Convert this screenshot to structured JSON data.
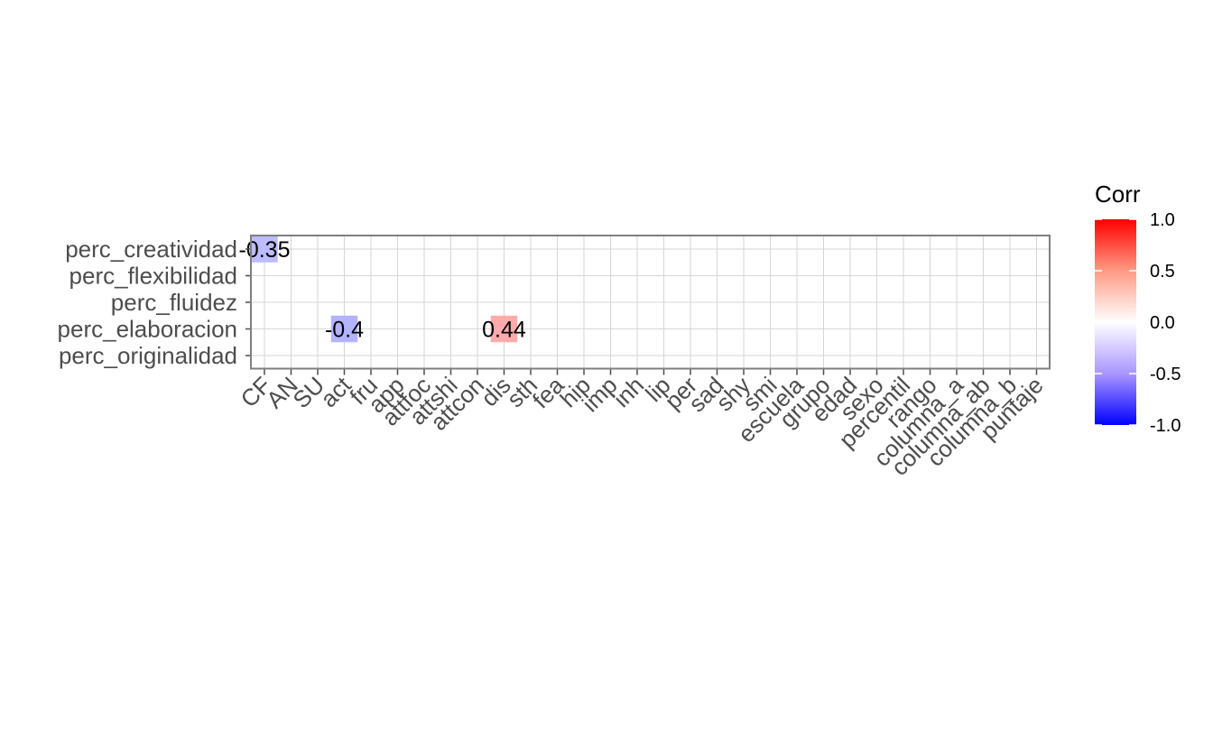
{
  "chart_data": {
    "type": "heatmap",
    "x_categories": [
      "CF",
      "AN",
      "SU",
      "act",
      "fru",
      "app",
      "attfoc",
      "attshi",
      "attcon",
      "dis",
      "sth",
      "fea",
      "hip",
      "imp",
      "inh",
      "lip",
      "per",
      "sad",
      "shy",
      "smi",
      "escuela",
      "grupo",
      "edad",
      "sexo",
      "percentil",
      "rango",
      "columna_a",
      "columna_ab",
      "columna_b",
      "puntaje"
    ],
    "y_categories": [
      "perc_creatividad",
      "perc_flexibilidad",
      "perc_fluidez",
      "perc_elaboracion",
      "perc_originalidad"
    ],
    "cells": [
      {
        "x": "CF",
        "y": "perc_creatividad",
        "value": -0.35,
        "label": "-0.35"
      },
      {
        "x": "act",
        "y": "perc_elaboracion",
        "value": -0.4,
        "label": "-0.4"
      },
      {
        "x": "dis",
        "y": "perc_elaboracion",
        "value": 0.44,
        "label": "0.44"
      }
    ],
    "legend": {
      "title": "Corr",
      "range": [
        -1,
        1
      ],
      "ticks": [
        "1.0",
        "0.5",
        "0.0",
        "-0.5",
        "-1.0"
      ],
      "tick_values": [
        1,
        0.5,
        0,
        -0.5,
        -1
      ],
      "low_color": "#0000FF",
      "mid_color": "#FFFFFF",
      "high_color": "#FF0000",
      "placement": "right"
    },
    "grid": true
  }
}
